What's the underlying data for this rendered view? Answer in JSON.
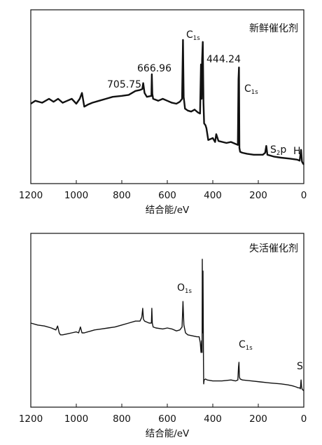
{
  "colors": {
    "trace": "#111111",
    "axis": "#111111",
    "background": "#ffffff"
  },
  "chart_data": [
    {
      "type": "line",
      "title": "新鲜催化剂",
      "xlabel": "结合能/eV",
      "ylabel": "",
      "xlim": [
        1200,
        0
      ],
      "x_reversed": true,
      "xticks": [
        "1200",
        "1000",
        "800",
        "600",
        "400",
        "200",
        "0"
      ],
      "grid": false,
      "legend": "none",
      "annotations": [
        {
          "main": "705.75",
          "sub": "",
          "tail": "",
          "x": 706
        },
        {
          "main": "666.96",
          "sub": "",
          "tail": "",
          "x": 667
        },
        {
          "main": "C",
          "sub": "1s",
          "tail": "",
          "x": 531
        },
        {
          "main": "444.24",
          "sub": "",
          "tail": "",
          "x": 444
        },
        {
          "main": "C",
          "sub": "1s",
          "tail": "",
          "x": 285
        },
        {
          "main": "S",
          "sub": "2",
          "tail": "p",
          "x": 165
        },
        {
          "main": "H",
          "sub": "",
          "tail": "",
          "x": 12
        }
      ],
      "series": [
        {
          "x": [
            1200,
            1180,
            1150,
            1120,
            1100,
            1080,
            1060,
            1040,
            1020,
            1000,
            985,
            975,
            965,
            950,
            930,
            900,
            870,
            840,
            800,
            770,
            740,
            720,
            710,
            706,
            700,
            690,
            670,
            668,
            666,
            662,
            640,
            620,
            600,
            580,
            560,
            545,
            535,
            531,
            528,
            522,
            510,
            495,
            480,
            465,
            456,
            452,
            449,
            447,
            444,
            441,
            438,
            432,
            428,
            420,
            400,
            390,
            385,
            375,
            340,
            320,
            300,
            290,
            287,
            285,
            283,
            280,
            270,
            250,
            220,
            180,
            170,
            165,
            160,
            130,
            100,
            60,
            30,
            18,
            12,
            8,
            3,
            0
          ],
          "y": [
            0.55,
            0.58,
            0.56,
            0.6,
            0.57,
            0.6,
            0.56,
            0.58,
            0.6,
            0.55,
            0.6,
            0.66,
            0.52,
            0.54,
            0.56,
            0.58,
            0.6,
            0.62,
            0.63,
            0.64,
            0.68,
            0.69,
            0.7,
            0.76,
            0.66,
            0.62,
            0.63,
            0.85,
            0.65,
            0.6,
            0.58,
            0.6,
            0.58,
            0.56,
            0.55,
            0.57,
            0.6,
            1.2,
            0.62,
            0.5,
            0.48,
            0.47,
            0.49,
            0.46,
            0.45,
            0.95,
            0.6,
            1.0,
            1.18,
            0.56,
            0.35,
            0.33,
            0.3,
            0.18,
            0.2,
            0.16,
            0.24,
            0.17,
            0.15,
            0.16,
            0.14,
            0.13,
            0.8,
            0.92,
            0.1,
            0.06,
            0.05,
            0.04,
            0.03,
            0.03,
            0.05,
            0.12,
            0.03,
            0.01,
            0.0,
            -0.01,
            -0.02,
            -0.03,
            0.08,
            -0.04,
            -0.06,
            -0.07
          ]
        }
      ]
    },
    {
      "type": "line",
      "title": "失活催化剂",
      "xlabel": "结合能/eV",
      "ylabel": "",
      "xlim": [
        1200,
        0
      ],
      "x_reversed": true,
      "xticks": [
        "1200",
        "1000",
        "800",
        "600",
        "400",
        "200",
        "0"
      ],
      "grid": false,
      "legend": "none",
      "annotations": [
        {
          "main": "O",
          "sub": "1s",
          "tail": "",
          "x": 531
        },
        {
          "main": "C",
          "sub": "1s",
          "tail": "",
          "x": 285
        },
        {
          "main": "S",
          "sub": "",
          "tail": "",
          "x": 12
        }
      ],
      "series": [
        {
          "x": [
            1200,
            1170,
            1140,
            1110,
            1090,
            1082,
            1075,
            1070,
            1060,
            1040,
            1020,
            1000,
            990,
            982,
            975,
            965,
            950,
            920,
            890,
            860,
            830,
            800,
            770,
            740,
            720,
            712,
            708,
            705,
            700,
            690,
            680,
            670,
            668,
            666,
            662,
            650,
            620,
            600,
            580,
            560,
            545,
            535,
            531,
            527,
            520,
            510,
            490,
            470,
            460,
            455,
            452,
            449,
            447,
            446,
            445,
            443,
            441,
            440,
            438,
            432,
            425,
            400,
            360,
            320,
            300,
            290,
            287,
            285,
            283,
            280,
            270,
            230,
            190,
            150,
            100,
            70,
            50,
            35,
            25,
            18,
            15,
            12,
            10,
            8,
            5,
            0
          ],
          "y": [
            0.6,
            0.58,
            0.57,
            0.55,
            0.53,
            0.57,
            0.5,
            0.48,
            0.48,
            0.49,
            0.5,
            0.51,
            0.5,
            0.56,
            0.5,
            0.5,
            0.51,
            0.53,
            0.54,
            0.55,
            0.56,
            0.58,
            0.6,
            0.62,
            0.62,
            0.66,
            0.75,
            0.64,
            0.62,
            0.61,
            0.6,
            0.6,
            0.75,
            0.6,
            0.56,
            0.55,
            0.54,
            0.55,
            0.54,
            0.52,
            0.53,
            0.56,
            0.82,
            0.58,
            0.5,
            0.48,
            0.47,
            0.46,
            0.46,
            0.4,
            0.3,
            0.42,
            0.3,
            1.25,
            0.5,
            1.13,
            0.2,
            -0.02,
            0.02,
            0.03,
            0.02,
            0.01,
            0.01,
            0.02,
            0.01,
            0.02,
            0.15,
            0.2,
            0.05,
            0.03,
            0.02,
            0.01,
            0.0,
            -0.01,
            -0.02,
            -0.03,
            -0.04,
            -0.05,
            -0.06,
            -0.06,
            -0.07,
            0.02,
            -0.05,
            -0.07,
            -0.08,
            -0.09
          ]
        }
      ]
    }
  ]
}
